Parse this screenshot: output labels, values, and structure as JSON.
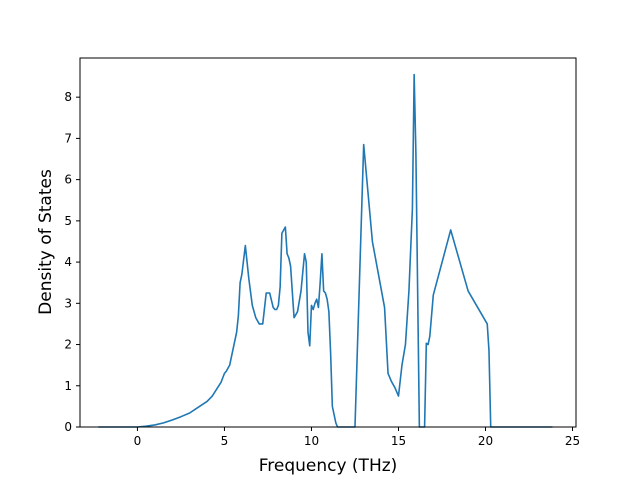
{
  "chart_data": {
    "type": "line",
    "xlabel": "Frequency (THz)",
    "ylabel": "Density of States",
    "xlim": [
      -3.3,
      25.2
    ],
    "ylim": [
      0,
      8.95
    ],
    "xticks": [
      0,
      5,
      10,
      15,
      20,
      25
    ],
    "yticks": [
      0,
      1,
      2,
      3,
      4,
      5,
      6,
      7,
      8
    ],
    "grid": false,
    "series": [
      {
        "color": "#1f77b4",
        "x": [
          -2.2,
          -0.5,
          0.0,
          0.5,
          1.0,
          1.5,
          2.0,
          2.5,
          3.0,
          3.5,
          4.0,
          4.3,
          4.6,
          4.8,
          5.0,
          5.1,
          5.3,
          5.4,
          5.6,
          5.7,
          5.8,
          5.9,
          6.0,
          6.2,
          6.4,
          6.6,
          6.8,
          7.0,
          7.2,
          7.4,
          7.6,
          7.8,
          7.9,
          8.0,
          8.1,
          8.2,
          8.3,
          8.5,
          8.6,
          8.7,
          8.8,
          9.0,
          9.2,
          9.4,
          9.6,
          9.7,
          9.8,
          9.9,
          10.0,
          10.1,
          10.2,
          10.3,
          10.4,
          10.5,
          10.6,
          10.7,
          10.8,
          10.9,
          11.0,
          11.1,
          11.2,
          11.3,
          11.4,
          11.5,
          11.6,
          11.8,
          12.5,
          13.0,
          13.5,
          14.2,
          14.4,
          14.6,
          14.8,
          15.0,
          15.2,
          15.4,
          15.6,
          15.8,
          15.9,
          16.0,
          16.2,
          16.3,
          16.4,
          16.5,
          16.6,
          16.7,
          16.8,
          17.0,
          18.0,
          19.0,
          20.1,
          20.2,
          20.3,
          20.5,
          20.7,
          20.8,
          20.9,
          21.0,
          21.2,
          21.4,
          21.5,
          21.8,
          22.5,
          23.8
        ],
        "y": [
          0,
          0,
          0,
          0.02,
          0.05,
          0.1,
          0.17,
          0.25,
          0.34,
          0.48,
          0.62,
          0.75,
          0.95,
          1.08,
          1.3,
          1.35,
          1.5,
          1.7,
          2.1,
          2.3,
          2.7,
          3.5,
          3.7,
          4.4,
          3.6,
          2.95,
          2.65,
          2.5,
          2.5,
          3.25,
          3.25,
          2.9,
          2.85,
          2.85,
          2.95,
          3.4,
          4.7,
          4.85,
          4.2,
          4.1,
          3.9,
          2.65,
          2.8,
          3.3,
          4.2,
          4.0,
          2.3,
          1.97,
          2.95,
          2.85,
          3.0,
          3.1,
          2.9,
          3.5,
          4.2,
          3.3,
          3.25,
          3.1,
          2.8,
          1.8,
          0.5,
          0.3,
          0.1,
          0.0,
          0.0,
          0.0,
          0.0,
          6.85,
          4.5,
          2.9,
          1.3,
          1.1,
          0.95,
          0.75,
          1.5,
          2.0,
          3.3,
          5.3,
          8.55,
          6.65,
          0.0,
          0.0,
          0.0,
          0.0,
          2.03,
          2.0,
          2.2,
          3.2,
          4.78,
          3.3,
          2.5,
          1.85,
          0.0,
          0.0,
          0.0,
          0.0,
          0.0,
          0.0,
          0.0,
          0.0,
          0.0,
          0.0,
          0.0,
          0.0
        ]
      }
    ]
  }
}
